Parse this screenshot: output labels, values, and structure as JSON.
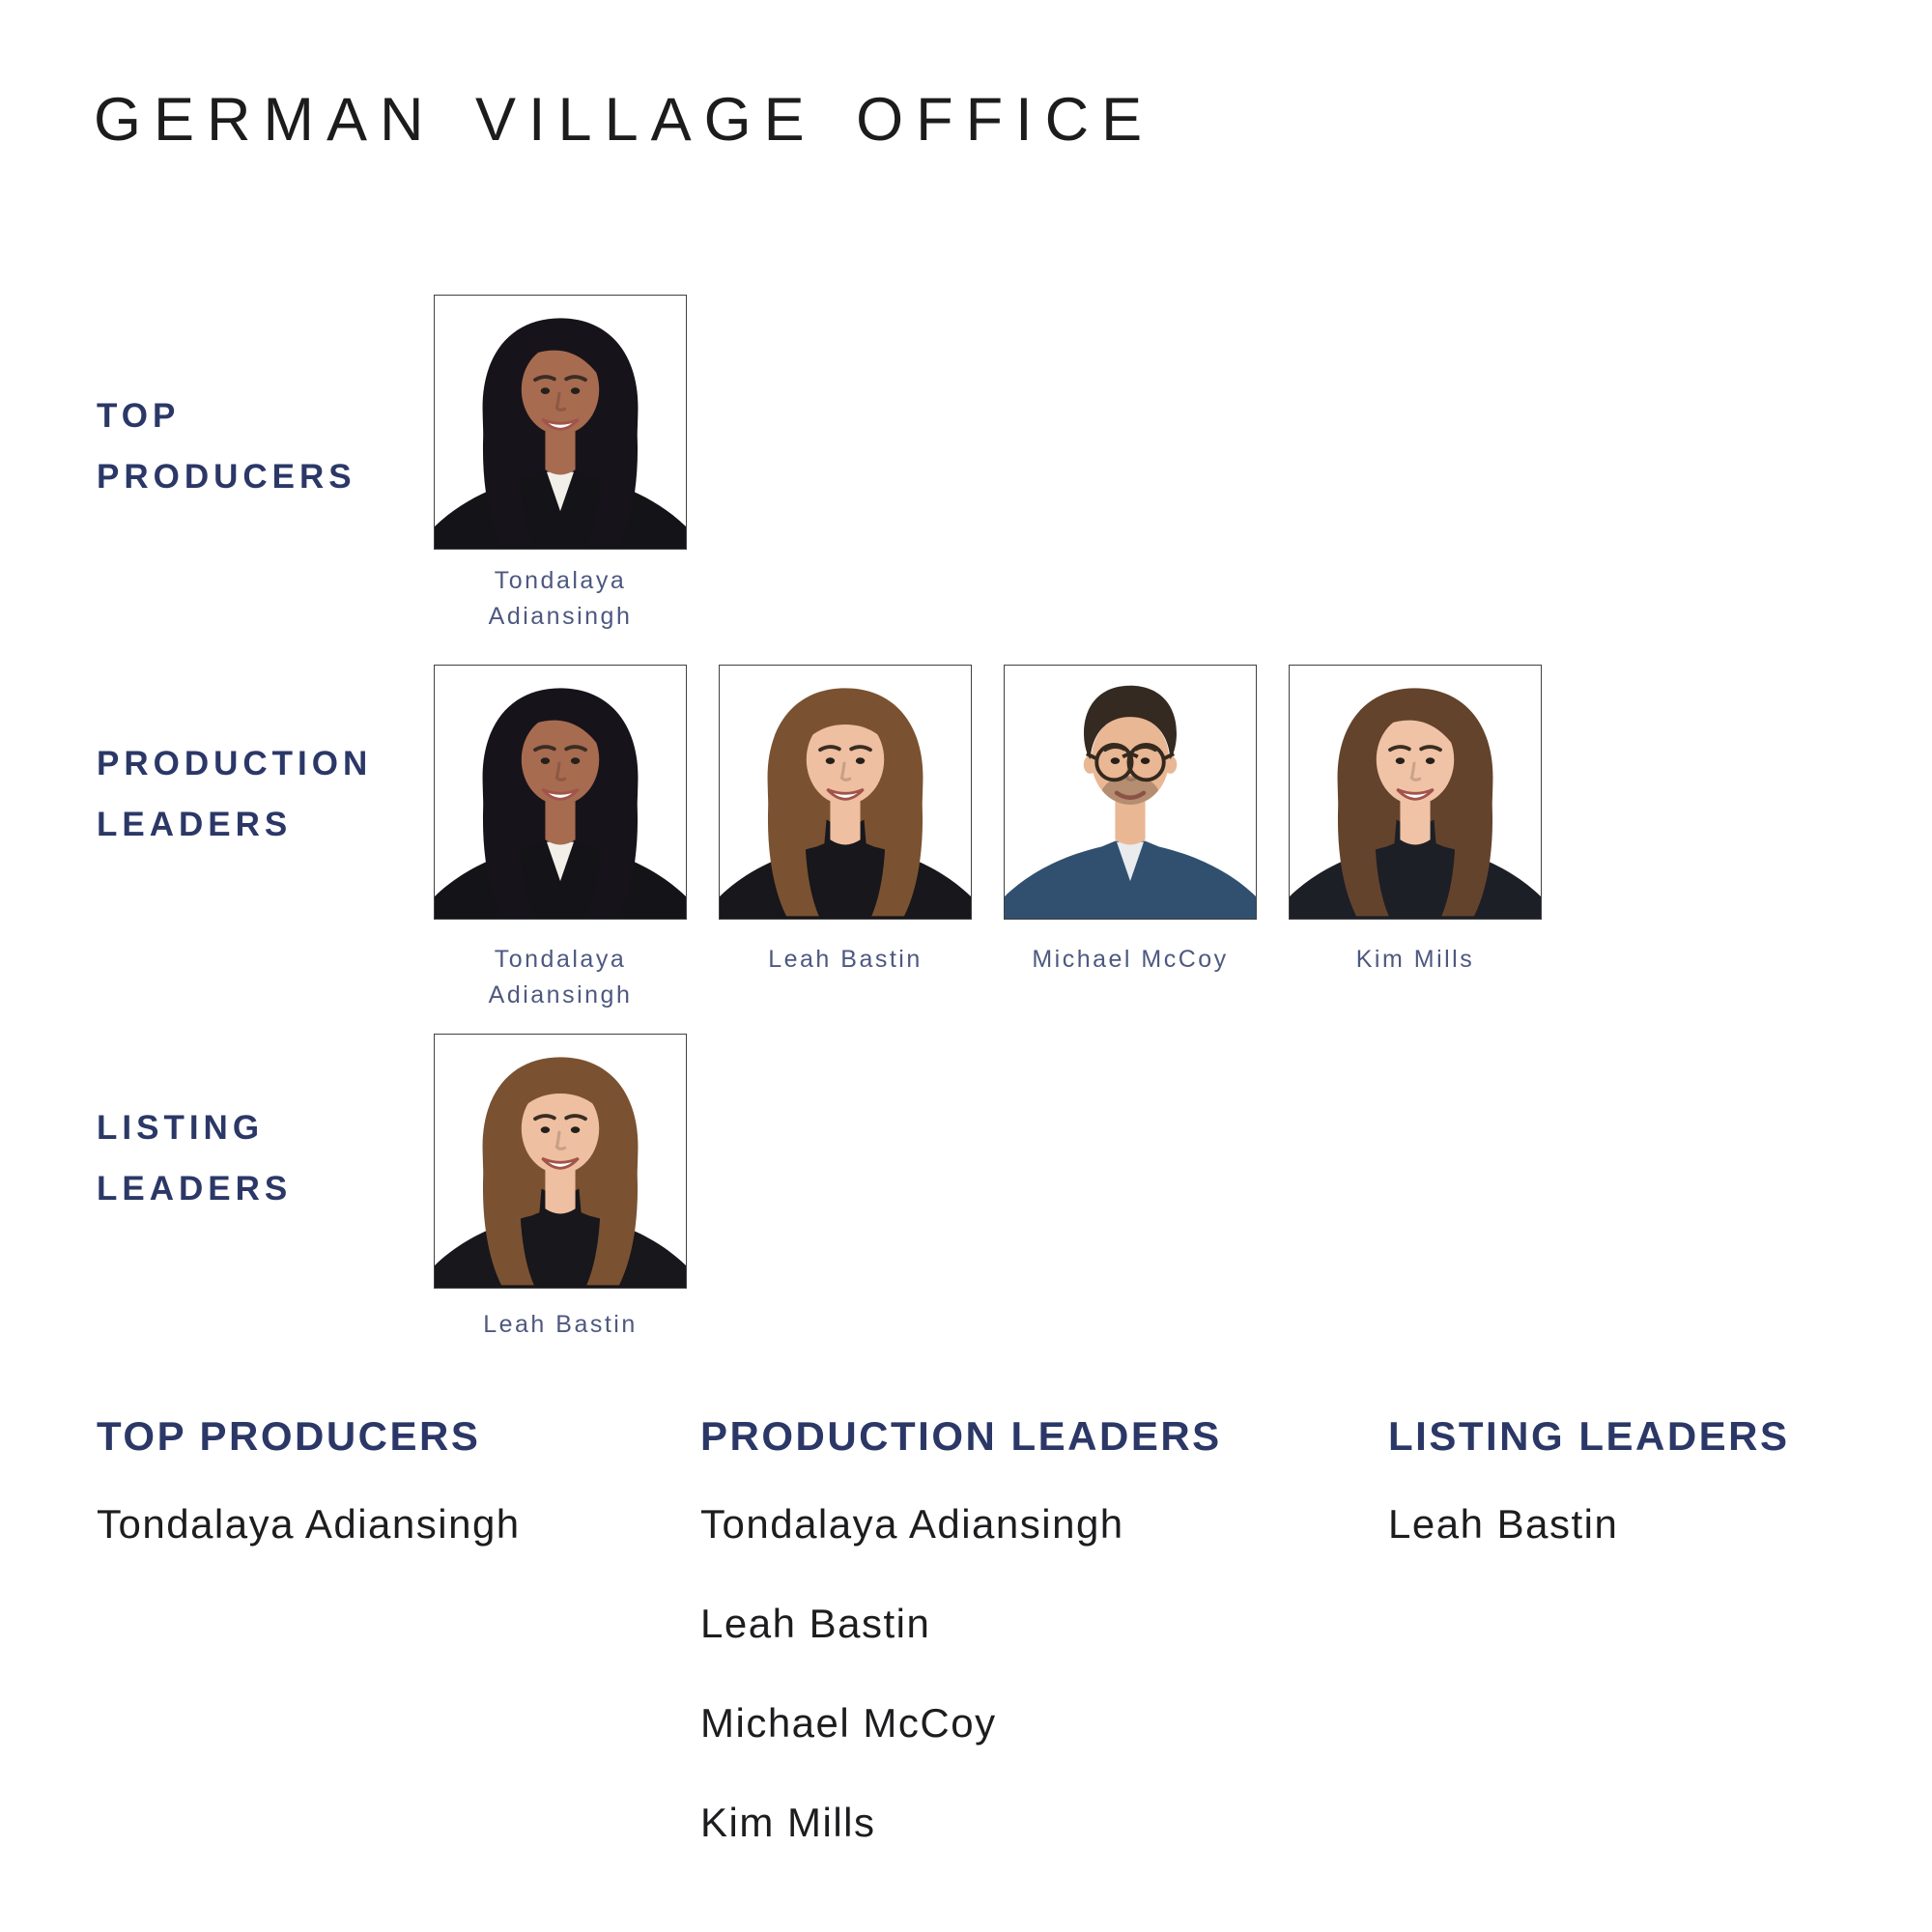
{
  "page": {
    "title": "GERMAN VILLAGE OFFICE",
    "background": "#ffffff"
  },
  "colors": {
    "title_text": "#1c1c1c",
    "section_label": "#2b3867",
    "caption_text": "#4e5880",
    "summary_heading": "#2b3867",
    "summary_name_text": "#1d1d1f",
    "photo_border": "#414141"
  },
  "sections": {
    "top_producers": {
      "label_line1": "TOP",
      "label_line2": "PRODUCERS"
    },
    "production_leaders": {
      "label_line1": "PRODUCTION",
      "label_line2": "LEADERS"
    },
    "listing_leaders": {
      "label_line1": "LISTING",
      "label_line2": "LEADERS"
    }
  },
  "people": {
    "tondalaya": {
      "full_name": "Tondalaya Adiansingh",
      "caption_line1": "Tondalaya",
      "caption_line2": "Adiansingh",
      "avatar": {
        "hairstyle": "long-side",
        "hair": "#17131a",
        "skin": "#a76b50",
        "outfit": "#141318",
        "shirt": "#f2efe9",
        "glasses": false,
        "beard": false,
        "smile": "teeth"
      }
    },
    "leah": {
      "full_name": "Leah Bastin",
      "caption_line1": "Leah Bastin",
      "avatar": {
        "hairstyle": "long-center",
        "hair": "#7a5231",
        "skin": "#eebfa0",
        "outfit": "#17171c",
        "collar": true,
        "glasses": false,
        "beard": false,
        "smile": "teeth"
      }
    },
    "michael": {
      "full_name": "Michael McCoy",
      "caption_line1": "Michael McCoy",
      "avatar": {
        "hairstyle": "short",
        "hair": "#342a21",
        "skin": "#e9b793",
        "outfit": "#31506f",
        "shirt": "#e9ebef",
        "glasses": true,
        "beard": true,
        "smile": "soft"
      }
    },
    "kim": {
      "full_name": "Kim Mills",
      "caption_line1": "Kim Mills",
      "avatar": {
        "hairstyle": "long-side",
        "hair": "#64432c",
        "skin": "#f0c3a6",
        "outfit": "#1d1f26",
        "collar": true,
        "glasses": false,
        "beard": false,
        "smile": "teeth"
      }
    }
  },
  "summary": {
    "top_producers": {
      "heading": "TOP PRODUCERS",
      "names": [
        "Tondalaya Adiansingh"
      ]
    },
    "production_leaders": {
      "heading": "PRODUCTION LEADERS",
      "names": [
        "Tondalaya Adiansingh",
        "Leah Bastin",
        "Michael McCoy",
        "Kim Mills"
      ]
    },
    "listing_leaders": {
      "heading": "LISTING LEADERS",
      "names": [
        "Leah Bastin"
      ]
    }
  }
}
